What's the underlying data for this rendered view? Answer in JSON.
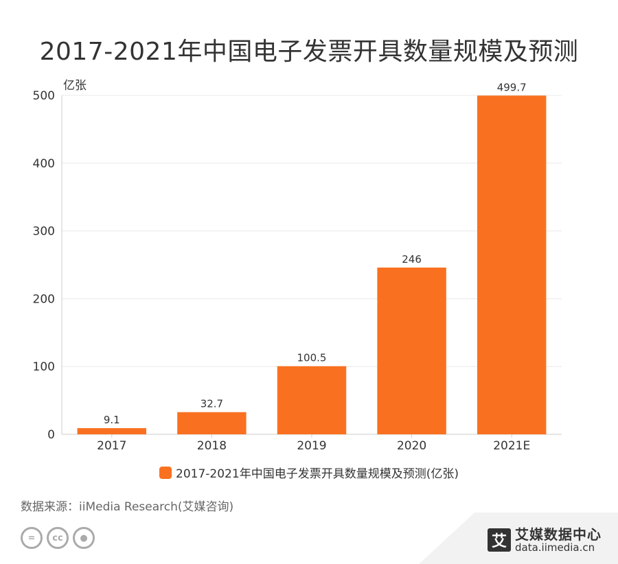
{
  "title": "2017-2021年中国电子发票开具数量规模及预测",
  "source": "数据来源：iiMedia Research(艾媒咨询)",
  "brand": {
    "mark": "艾",
    "name": "艾媒数据中心",
    "url": "data.iimedia.cn"
  },
  "colors": {
    "bar": "#F97120",
    "grid": "#e8e8e8",
    "axis": "#cccccc"
  },
  "chart_data": {
    "type": "bar",
    "title": "2017-2021年中国电子发票开具数量规模及预测",
    "ylabel": "亿张",
    "categories": [
      "2017",
      "2018",
      "2019",
      "2020",
      "2021E"
    ],
    "series": [
      {
        "name": "2017-2021年中国电子发票开具数量规模及预测(亿张)",
        "values": [
          9.1,
          32.7,
          100.5,
          246,
          499.7
        ]
      }
    ],
    "data_labels": [
      "9.1",
      "32.7",
      "100.5",
      "246",
      "499.7"
    ],
    "yticks": [
      0,
      100,
      200,
      300,
      400,
      500
    ],
    "ylim": [
      0,
      500
    ],
    "grid": true,
    "legend": "bottom"
  }
}
